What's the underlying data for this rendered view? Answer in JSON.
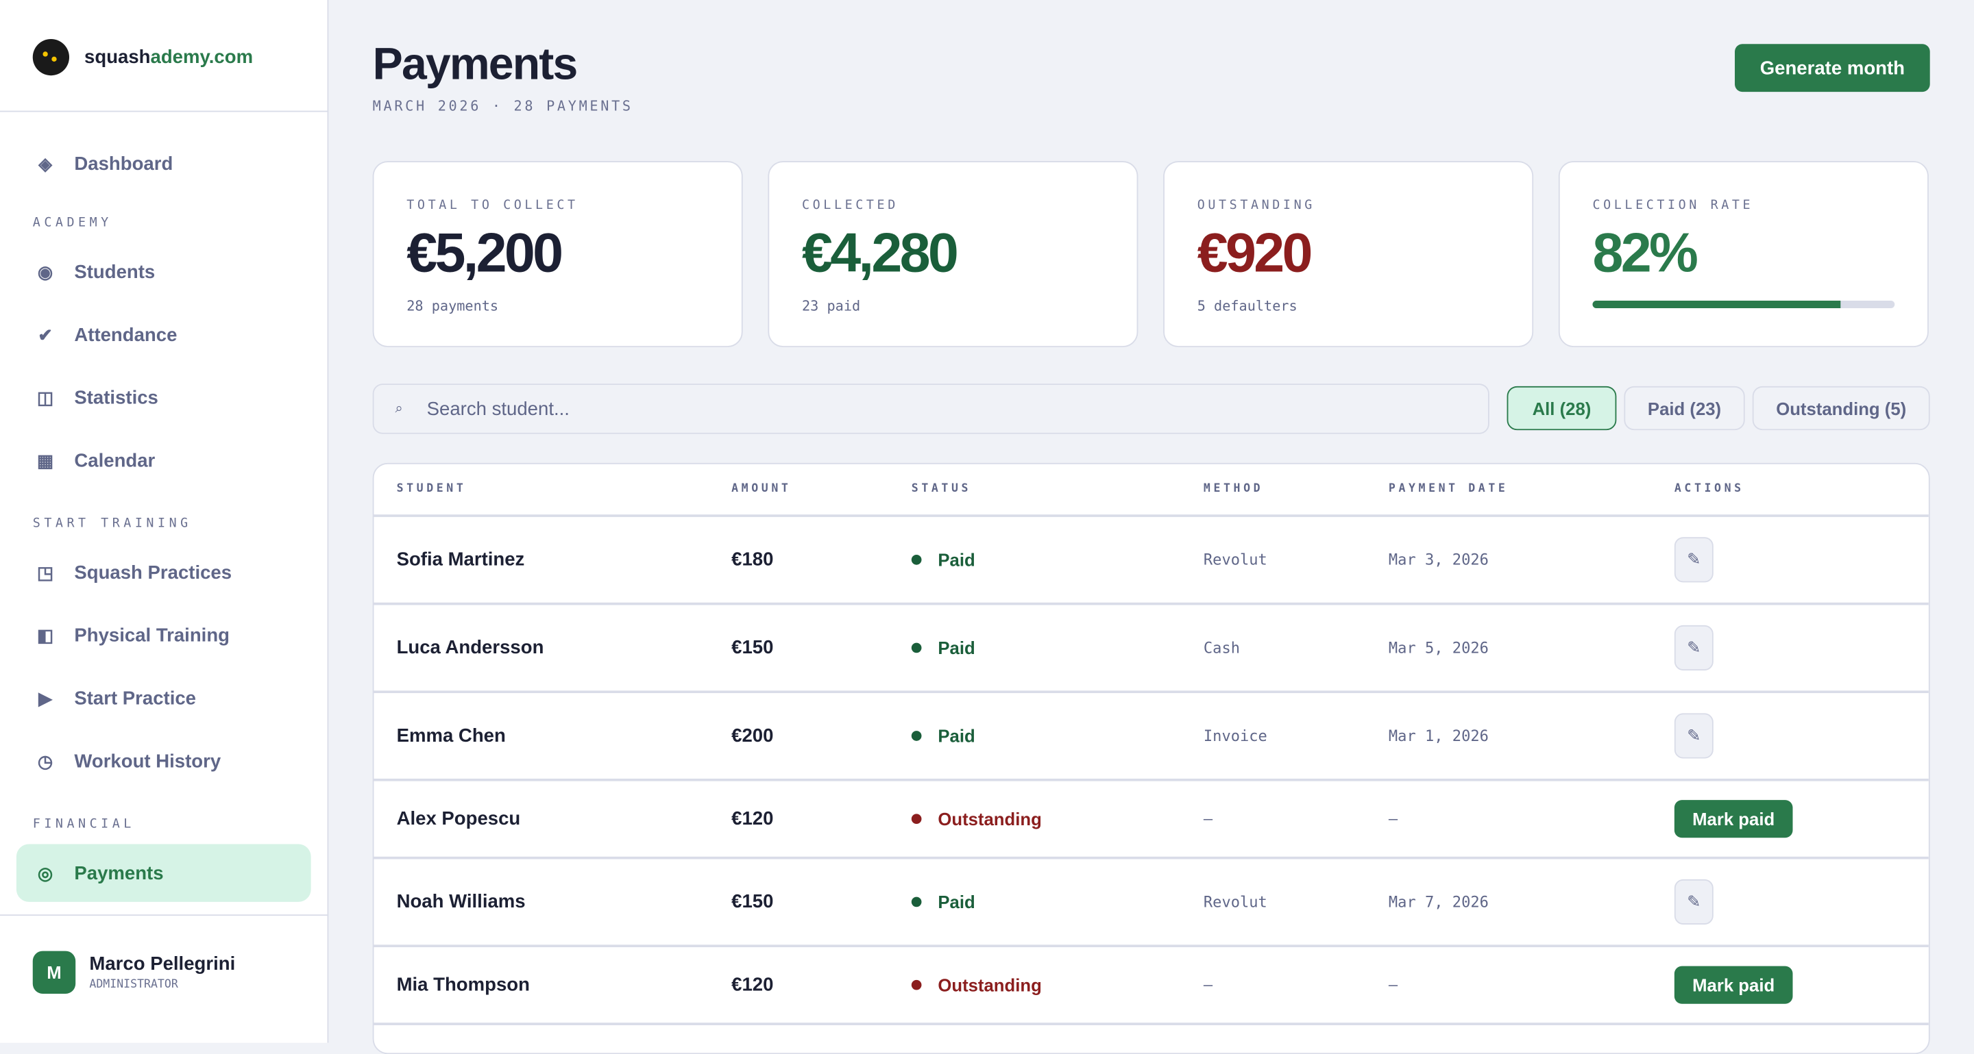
{
  "colors": {
    "accent": "#2a7a4b",
    "collected": "#1a5e3a",
    "outstanding": "#8b1e1e",
    "text": "#1c2033",
    "muted": "#5f6688"
  },
  "brand": {
    "part1": "squash",
    "part2": "ademy.com"
  },
  "sidebar": {
    "dashboard": {
      "label": "Dashboard",
      "icon": "diamond-icon"
    },
    "sections": [
      {
        "title": "ACADEMY",
        "items": [
          {
            "label": "Students",
            "icon": "circle-icon"
          },
          {
            "label": "Attendance",
            "icon": "check-icon"
          },
          {
            "label": "Statistics",
            "icon": "columns-icon"
          },
          {
            "label": "Calendar",
            "icon": "grid-icon"
          }
        ]
      },
      {
        "title": "START TRAINING",
        "items": [
          {
            "label": "Squash Practices",
            "icon": "square-corner-icon"
          },
          {
            "label": "Physical Training",
            "icon": "half-square-icon"
          },
          {
            "label": "Start Practice",
            "icon": "play-icon"
          },
          {
            "label": "Workout History",
            "icon": "clock-icon"
          }
        ]
      },
      {
        "title": "FINANCIAL",
        "items": [
          {
            "label": "Payments",
            "icon": "target-icon",
            "active": true
          }
        ]
      }
    ],
    "user": {
      "initial": "M",
      "name": "Marco Pellegrini",
      "role": "ADMINISTRATOR"
    }
  },
  "header": {
    "title": "Payments",
    "subtitle": "MARCH 2026 · 28 PAYMENTS",
    "generate_label": "Generate month"
  },
  "stats": [
    {
      "label": "TOTAL TO COLLECT",
      "value": "€5,200",
      "sub": "28 payments"
    },
    {
      "label": "COLLECTED",
      "value": "€4,280",
      "sub": "23 paid"
    },
    {
      "label": "OUTSTANDING",
      "value": "€920",
      "sub": "5 defaulters"
    },
    {
      "label": "COLLECTION RATE",
      "value": "82%",
      "progress": 82
    }
  ],
  "search": {
    "placeholder": "Search student...",
    "icon": "search-icon"
  },
  "filters": [
    {
      "label": "All (28)",
      "active": true
    },
    {
      "label": "Paid (23)"
    },
    {
      "label": "Outstanding (5)"
    }
  ],
  "table": {
    "columns": [
      "STUDENT",
      "AMOUNT",
      "STATUS",
      "METHOD",
      "PAYMENT DATE",
      "ACTIONS"
    ],
    "rows": [
      {
        "student": "Sofia Martinez",
        "amount": "€180",
        "status": "Paid",
        "method": "Revolut",
        "date": "Mar 3, 2026"
      },
      {
        "student": "Luca Andersson",
        "amount": "€150",
        "status": "Paid",
        "method": "Cash",
        "date": "Mar 5, 2026"
      },
      {
        "student": "Emma Chen",
        "amount": "€200",
        "status": "Paid",
        "method": "Invoice",
        "date": "Mar 1, 2026"
      },
      {
        "student": "Alex Popescu",
        "amount": "€120",
        "status": "Outstanding",
        "method": "–",
        "date": "–",
        "action": "Mark paid"
      },
      {
        "student": "Noah Williams",
        "amount": "€150",
        "status": "Paid",
        "method": "Revolut",
        "date": "Mar 7, 2026"
      },
      {
        "student": "Mia Thompson",
        "amount": "€120",
        "status": "Outstanding",
        "method": "–",
        "date": "–",
        "action": "Mark paid"
      }
    ]
  }
}
